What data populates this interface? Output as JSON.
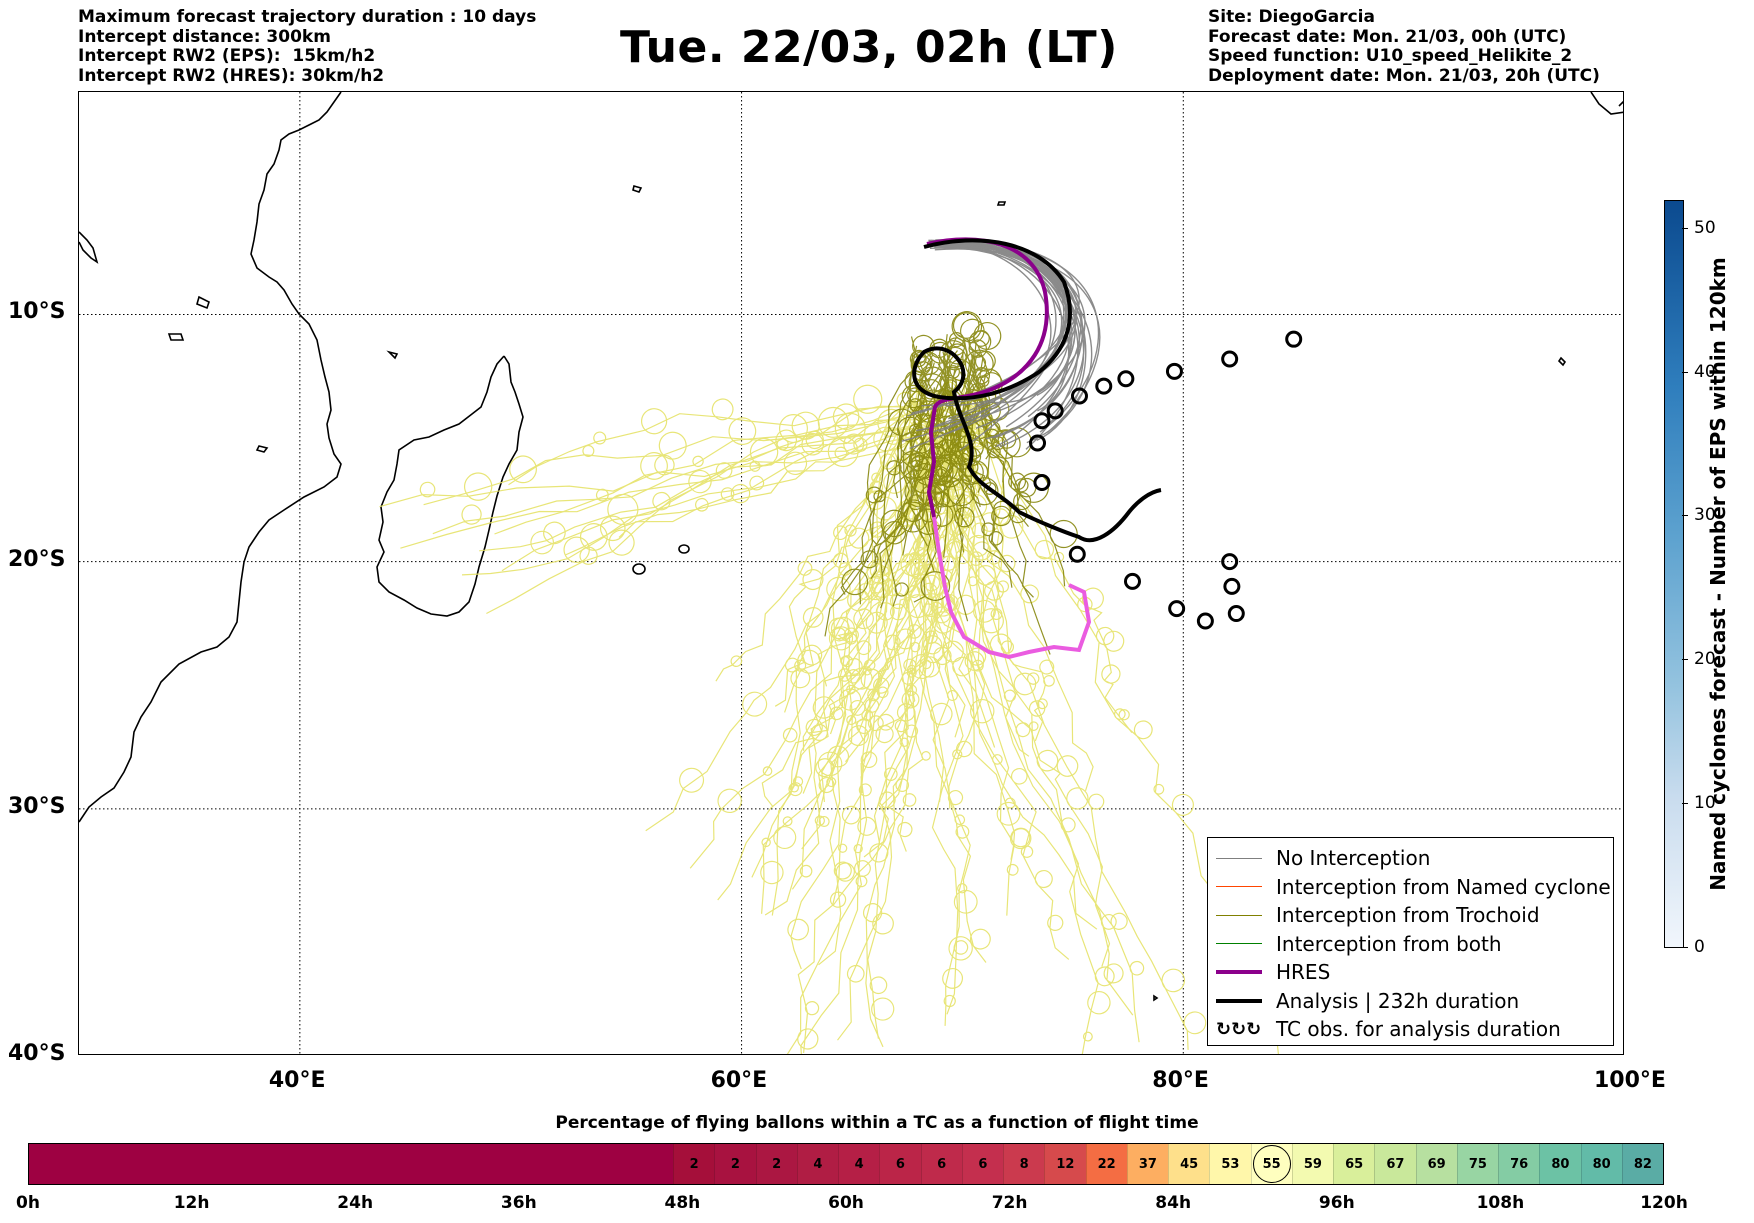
{
  "header_left": [
    "Maximum forecast trajectory duration : 10 days",
    "Intercept distance: 300km",
    "Intercept RW2 (EPS):  15km/h2",
    "Intercept RW2 (HRES): 30km/h2"
  ],
  "title": "Tue. 22/03, 02h (LT)",
  "header_right": [
    "Site: DiegoGarcia",
    "Forecast date: Mon. 21/03, 00h (UTC)",
    "Speed function: U10_speed_Helikite_2",
    "Deployment date: Mon. 21/03, 20h (UTC)"
  ],
  "map": {
    "lon_range": [
      30,
      100
    ],
    "lat_range": [
      -40,
      -1
    ],
    "lon_ticks": [
      "40°E",
      "60°E",
      "80°E",
      "100°E"
    ],
    "lat_ticks": [
      "10°S",
      "20°S",
      "30°S",
      "40°S"
    ],
    "gridlines": "dotted",
    "tc_obs_markers": [
      {
        "lon": 85.0,
        "lat": -11.0
      },
      {
        "lon": 82.1,
        "lat": -11.8
      },
      {
        "lon": 79.6,
        "lat": -12.3
      },
      {
        "lon": 77.4,
        "lat": -12.6
      },
      {
        "lon": 76.4,
        "lat": -12.9
      },
      {
        "lon": 75.3,
        "lat": -13.3
      },
      {
        "lon": 74.2,
        "lat": -13.9
      },
      {
        "lon": 73.6,
        "lat": -14.3
      },
      {
        "lon": 73.4,
        "lat": -15.2
      },
      {
        "lon": 73.6,
        "lat": -16.8
      },
      {
        "lon": 75.2,
        "lat": -19.7
      },
      {
        "lon": 77.7,
        "lat": -20.8
      },
      {
        "lon": 79.7,
        "lat": -21.9
      },
      {
        "lon": 81.0,
        "lat": -22.4
      },
      {
        "lon": 82.2,
        "lat": -21.0
      },
      {
        "lon": 82.1,
        "lat": -20.0
      },
      {
        "lon": 82.4,
        "lat": -22.1
      }
    ]
  },
  "colorbar_right": {
    "label": "Named cyclones forecast - Number of EPS within 120km",
    "ticks": [
      "0",
      "10",
      "20",
      "30",
      "40",
      "50"
    ],
    "range": [
      0,
      52
    ]
  },
  "legend": [
    {
      "label": "No Interception",
      "color": "#7f7f7f",
      "style": "line-thin"
    },
    {
      "label": "Interception from Named cyclone",
      "color": "#ff4500",
      "style": "line-thin"
    },
    {
      "label": "Interception from Trochoid",
      "color": "#808000",
      "style": "line-thin"
    },
    {
      "label": "Interception from both",
      "color": "#008000",
      "style": "line-thin"
    },
    {
      "label": "HRES",
      "color": "#8b008b",
      "style": "line-thick"
    },
    {
      "label": "Analysis | 232h duration",
      "color": "#000000",
      "style": "line-thick"
    },
    {
      "label": "TC obs. for analysis duration",
      "color": "#000000",
      "style": "tc-symbols",
      "icon": "tc-spiral-icon"
    }
  ],
  "percentage_bar": {
    "title": "Percentage of flying ballons within a TC as a function of flight time",
    "values": [
      "2",
      "2",
      "2",
      "4",
      "4",
      "6",
      "6",
      "6",
      "8",
      "12",
      "22",
      "37",
      "45",
      "53",
      "55",
      "59",
      "65",
      "67",
      "69",
      "75",
      "76",
      "80",
      "80",
      "82"
    ],
    "colors": [
      "#a50f3a",
      "#a81240",
      "#ab1742",
      "#b01d44",
      "#b51f46",
      "#bb2548",
      "#bf2a4b",
      "#c42f4e",
      "#cb3a4e",
      "#d64a4c",
      "#f46d43",
      "#fdae61",
      "#fee08b",
      "#fff7aa",
      "#ffffbf",
      "#f3fab0",
      "#d9ef9b",
      "#c9e89b",
      "#b7e0a0",
      "#98d5a3",
      "#84cca4",
      "#6cc2a5",
      "#62bba8",
      "#5aaca5"
    ],
    "highlight_value": "55",
    "hours": [
      "0h",
      "12h",
      "24h",
      "36h",
      "48h",
      "60h",
      "72h",
      "84h",
      "96h",
      "108h",
      "120h"
    ]
  }
}
